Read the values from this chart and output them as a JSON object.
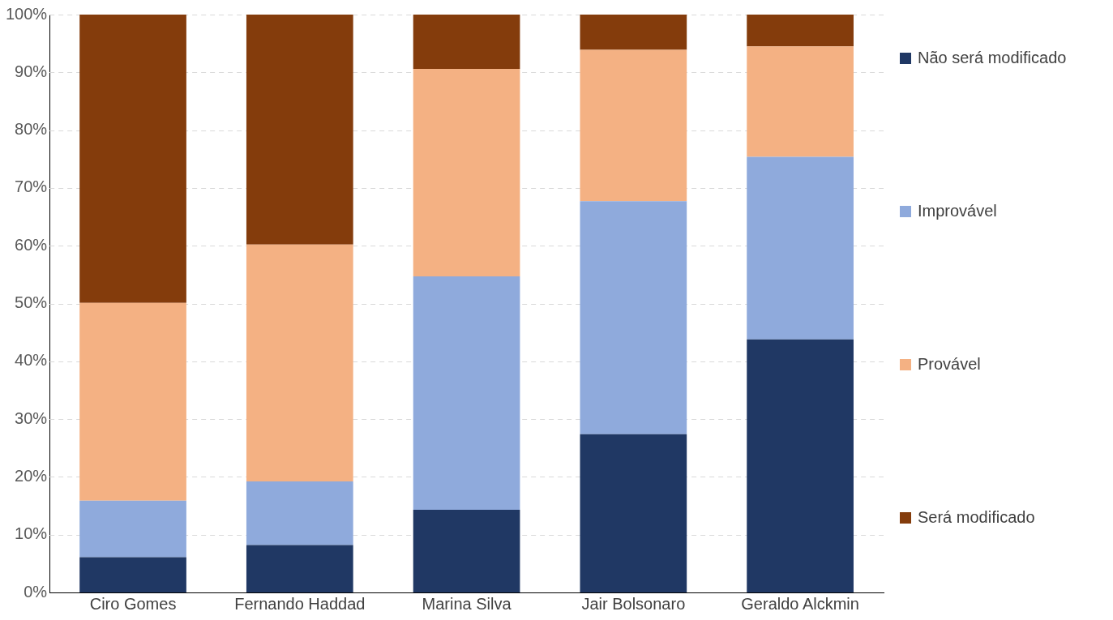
{
  "chart_data": {
    "type": "bar",
    "stacked": true,
    "categories": [
      "Ciro Gomes",
      "Fernando Haddad",
      "Marina Silva",
      "Jair Bolsonaro",
      "Geraldo Alckmin"
    ],
    "series": [
      {
        "name": "Não será modificado",
        "color": "#203864",
        "values": [
          6.1,
          8.2,
          14.3,
          27.4,
          43.8
        ]
      },
      {
        "name": "Improvável",
        "color": "#8faadc",
        "values": [
          9.8,
          11.0,
          40.4,
          40.3,
          31.6
        ]
      },
      {
        "name": "Provável",
        "color": "#f4b183",
        "values": [
          34.2,
          41.0,
          35.9,
          26.2,
          19.1
        ]
      },
      {
        "name": "Será modificado",
        "color": "#843c0c",
        "values": [
          49.9,
          39.8,
          9.4,
          6.1,
          5.5
        ]
      }
    ],
    "ylim": [
      0,
      100
    ],
    "yticks": [
      {
        "value": 0,
        "label": "0%"
      },
      {
        "value": 10,
        "label": "10%"
      },
      {
        "value": 20,
        "label": "20%"
      },
      {
        "value": 30,
        "label": "30%"
      },
      {
        "value": 40,
        "label": "40%"
      },
      {
        "value": 50,
        "label": "50%"
      },
      {
        "value": 60,
        "label": "60%"
      },
      {
        "value": 70,
        "label": "70%"
      },
      {
        "value": 80,
        "label": "80%"
      },
      {
        "value": 90,
        "label": "90%"
      },
      {
        "value": 100,
        "label": "100%"
      }
    ],
    "grid": "y",
    "legend": "right"
  }
}
